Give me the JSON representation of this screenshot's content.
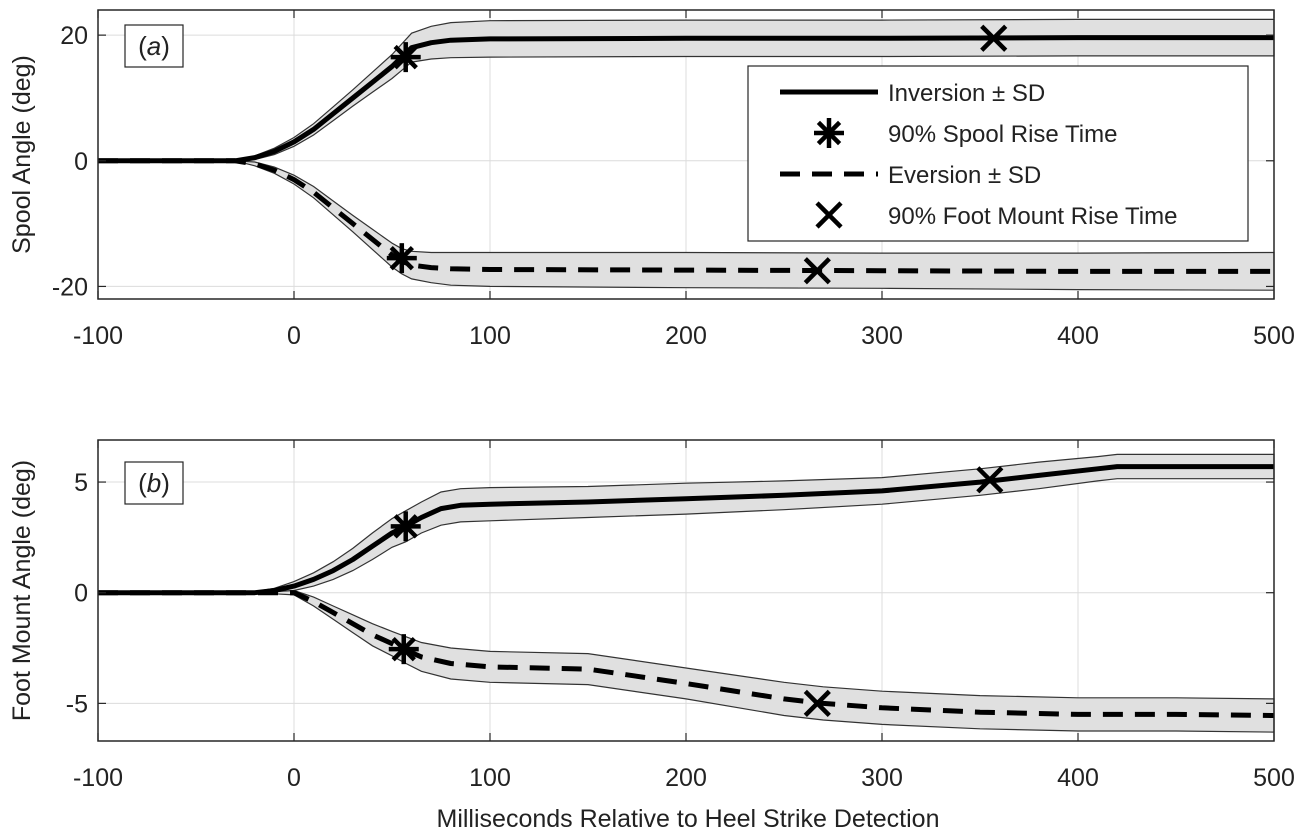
{
  "chart_data": [
    {
      "type": "line",
      "panel_label": "(a)",
      "panel_letter": "a",
      "title": "",
      "xlabel": "",
      "ylabel": "Spool Angle (deg)",
      "xlim": [
        -100,
        500
      ],
      "ylim": [
        -22,
        24
      ],
      "xticks": [
        -100,
        0,
        100,
        200,
        300,
        400,
        500
      ],
      "yticks": [
        -20,
        0,
        20
      ],
      "grid": true,
      "legend": {
        "position": "top-right",
        "entries": [
          {
            "label": "Inversion ± SD",
            "style": "solid-line"
          },
          {
            "label": "90% Spool Rise Time",
            "style": "asterisk-marker"
          },
          {
            "label": "Eversion ± SD",
            "style": "dashed-line"
          },
          {
            "label": "90% Foot Mount Rise Time",
            "style": "x-marker"
          }
        ]
      },
      "series": [
        {
          "name": "Inversion",
          "style": "solid",
          "x": [
            -100,
            -30,
            -20,
            -10,
            0,
            10,
            20,
            30,
            40,
            50,
            55,
            60,
            70,
            80,
            100,
            200,
            300,
            400,
            500
          ],
          "y": [
            0,
            0,
            0.5,
            1.5,
            3,
            5,
            7.5,
            10,
            12.5,
            15,
            16.5,
            18,
            18.8,
            19.2,
            19.4,
            19.5,
            19.5,
            19.6,
            19.6
          ],
          "sd": [
            0,
            0,
            0.3,
            0.5,
            0.7,
            0.9,
            1.1,
            1.3,
            1.6,
            1.9,
            2.1,
            2.3,
            2.6,
            2.8,
            2.9,
            2.9,
            2.9,
            2.9,
            2.9
          ]
        },
        {
          "name": "Eversion",
          "style": "dashed",
          "x": [
            -100,
            -30,
            -20,
            -10,
            0,
            10,
            20,
            30,
            40,
            50,
            55,
            60,
            70,
            80,
            100,
            200,
            300,
            400,
            500
          ],
          "y": [
            0,
            0,
            -0.5,
            -1.5,
            -3,
            -5,
            -7.5,
            -10,
            -12.5,
            -15,
            -16,
            -16.6,
            -17,
            -17.2,
            -17.3,
            -17.4,
            -17.5,
            -17.6,
            -17.6
          ],
          "sd": [
            0,
            0,
            0.3,
            0.5,
            0.7,
            0.9,
            1.1,
            1.3,
            1.6,
            1.9,
            2.0,
            2.2,
            2.4,
            2.6,
            2.7,
            2.8,
            2.8,
            2.9,
            3.0
          ]
        }
      ],
      "markers": {
        "spool_rise_time": [
          {
            "x": 57,
            "y": 16.5
          },
          {
            "x": 55,
            "y": -15.5
          }
        ],
        "foot_mount_rise_time": [
          {
            "x": 357,
            "y": 19.5
          },
          {
            "x": 267,
            "y": -17.5
          }
        ]
      }
    },
    {
      "type": "line",
      "panel_label": "(b)",
      "panel_letter": "b",
      "title": "",
      "xlabel": "Milliseconds Relative to Heel Strike Detection",
      "ylabel": "Foot Mount Angle (deg)",
      "xlim": [
        -100,
        500
      ],
      "ylim": [
        -6.7,
        6.9
      ],
      "xticks": [
        -100,
        0,
        100,
        200,
        300,
        400,
        500
      ],
      "yticks": [
        -5,
        0,
        5
      ],
      "grid": true,
      "series": [
        {
          "name": "Inversion",
          "style": "solid",
          "x": [
            -100,
            -30,
            -20,
            -10,
            0,
            10,
            20,
            30,
            40,
            50,
            57,
            65,
            75,
            85,
            100,
            150,
            200,
            250,
            300,
            350,
            380,
            410,
            420,
            500
          ],
          "y": [
            0,
            0,
            0,
            0.1,
            0.3,
            0.6,
            1.0,
            1.5,
            2.1,
            2.7,
            3.0,
            3.4,
            3.8,
            3.95,
            4.0,
            4.1,
            4.25,
            4.4,
            4.6,
            5.0,
            5.3,
            5.6,
            5.7,
            5.7
          ],
          "sd": [
            0,
            0,
            0.05,
            0.1,
            0.2,
            0.3,
            0.4,
            0.5,
            0.6,
            0.65,
            0.7,
            0.7,
            0.75,
            0.75,
            0.75,
            0.7,
            0.7,
            0.65,
            0.6,
            0.6,
            0.6,
            0.55,
            0.55,
            0.55
          ]
        },
        {
          "name": "Eversion",
          "style": "dashed",
          "x": [
            -100,
            -20,
            -10,
            0,
            10,
            20,
            30,
            40,
            50,
            56,
            65,
            80,
            100,
            150,
            200,
            250,
            270,
            300,
            350,
            400,
            450,
            500
          ],
          "y": [
            0,
            0,
            0,
            0,
            -0.4,
            -0.9,
            -1.4,
            -1.9,
            -2.3,
            -2.55,
            -2.9,
            -3.2,
            -3.35,
            -3.45,
            -4.1,
            -4.8,
            -5.0,
            -5.2,
            -5.4,
            -5.5,
            -5.5,
            -5.55
          ],
          "sd": [
            0,
            0,
            0.05,
            0.1,
            0.2,
            0.3,
            0.4,
            0.5,
            0.55,
            0.6,
            0.65,
            0.7,
            0.7,
            0.7,
            0.7,
            0.75,
            0.75,
            0.75,
            0.75,
            0.75,
            0.75,
            0.75
          ]
        }
      ],
      "markers": {
        "spool_rise_time": [
          {
            "x": 57,
            "y": 3.0
          },
          {
            "x": 56,
            "y": -2.55
          }
        ],
        "foot_mount_rise_time": [
          {
            "x": 355,
            "y": 5.1
          },
          {
            "x": 267,
            "y": -5.0
          }
        ]
      }
    }
  ],
  "colors": {
    "line": "#000000",
    "band_fill": "#e0e0e0",
    "band_edge": "#333333",
    "grid": "#dcdcdc",
    "axis": "#262626",
    "text": "#222222",
    "background": "#ffffff"
  }
}
